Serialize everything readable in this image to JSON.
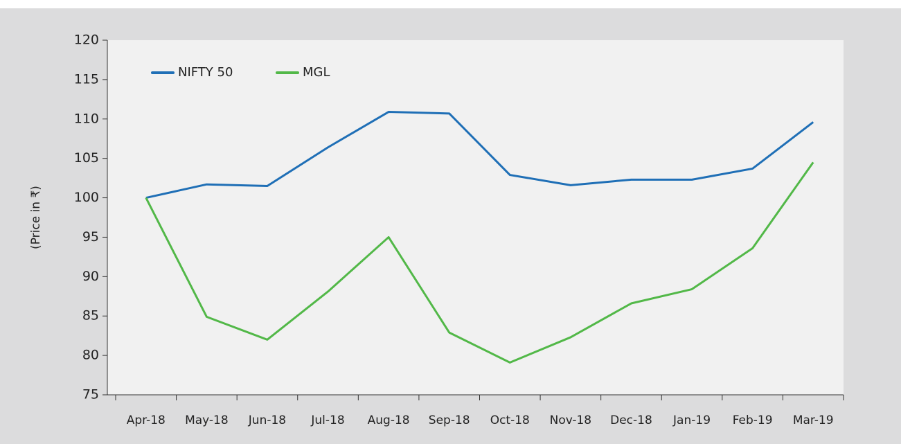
{
  "chart_data": {
    "type": "line",
    "y_label": "(Price in ₹)",
    "categories": [
      "Apr-18",
      "May-18",
      "Jun-18",
      "Jul-18",
      "Aug-18",
      "Sep-18",
      "Oct-18",
      "Nov-18",
      "Dec-18",
      "Jan-19",
      "Feb-19",
      "Mar-19"
    ],
    "series": [
      {
        "name": "NIFTY 50",
        "color": "#1f6fb6",
        "values": [
          100,
          101.7,
          101.5,
          106.4,
          110.9,
          110.7,
          102.9,
          101.6,
          102.3,
          102.3,
          103.7,
          109.6
        ]
      },
      {
        "name": "MGL",
        "color": "#52b848",
        "values": [
          100,
          84.9,
          82,
          88.1,
          95,
          82.9,
          79.1,
          82.3,
          86.6,
          88.4,
          93.6,
          104.5
        ]
      }
    ],
    "ylim": [
      75,
      120
    ],
    "yticks": [
      75,
      80,
      85,
      90,
      95,
      100,
      105,
      110,
      115,
      120
    ],
    "grid": false,
    "legend": "top-left"
  }
}
